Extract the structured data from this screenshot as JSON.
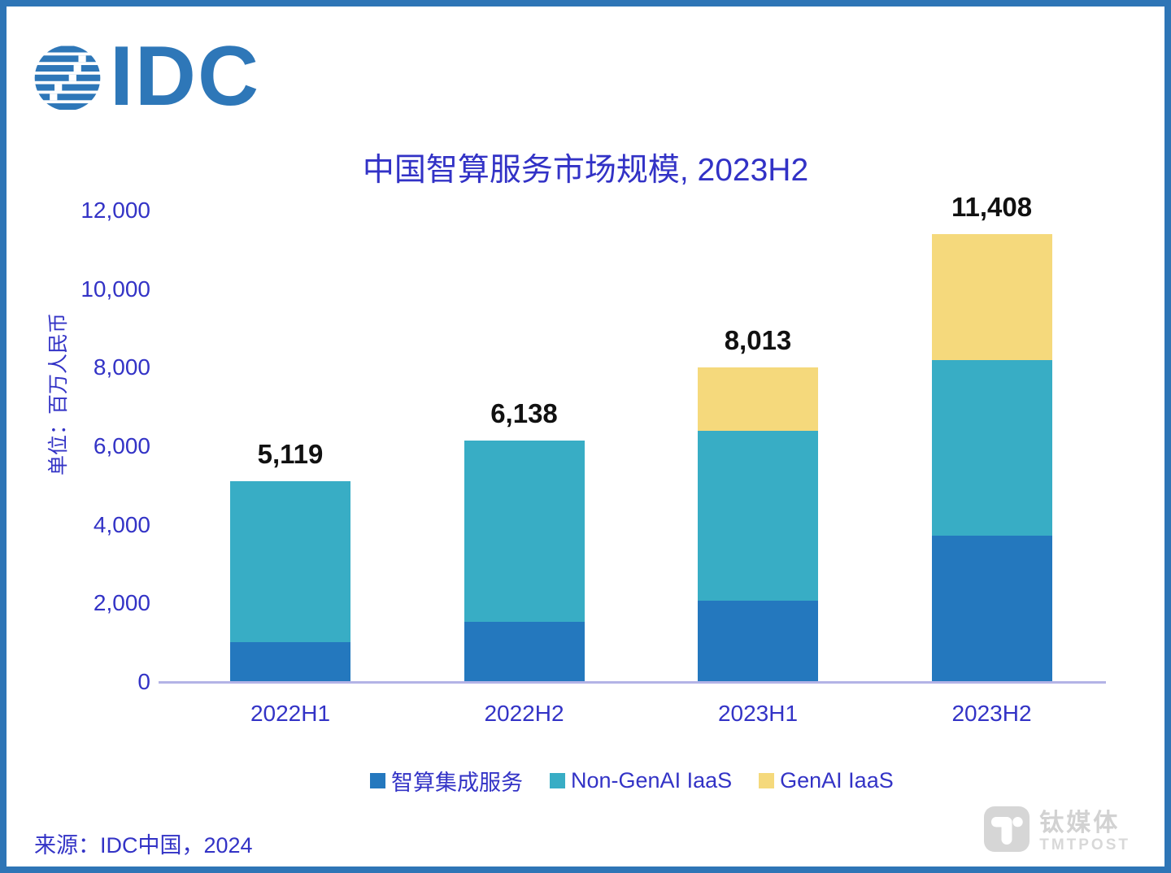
{
  "page": {
    "border_color": "#2E75B6",
    "background": "#FFFFFF"
  },
  "logo": {
    "text": "IDC",
    "color": "#2E77B8"
  },
  "chart_data": {
    "type": "bar",
    "stacked": true,
    "title": "中国智算服务市场规模, 2023H2",
    "ylabel": "单位：百万人民币",
    "ylim": [
      0,
      12000
    ],
    "yticks": [
      0,
      2000,
      4000,
      6000,
      8000,
      10000,
      12000
    ],
    "ytick_labels": [
      "0",
      "2,000",
      "4,000",
      "6,000",
      "8,000",
      "10,000",
      "12,000"
    ],
    "categories": [
      "2022H1",
      "2022H2",
      "2023H1",
      "2023H2"
    ],
    "series": [
      {
        "name": "智算集成服务",
        "color": "#2478BE",
        "values": [
          1017,
          1535,
          2074,
          3730
        ]
      },
      {
        "name": "Non-GenAI IaaS",
        "color": "#38ADC5",
        "values": [
          4102,
          4603,
          4321,
          4458
        ]
      },
      {
        "name": "GenAI IaaS",
        "color": "#F5D97C",
        "values": [
          0,
          0,
          1618,
          3220
        ]
      }
    ],
    "totals": [
      5119,
      6138,
      8013,
      11408
    ],
    "total_labels": [
      "5,119",
      "6,138",
      "8,013",
      "11,408"
    ],
    "segment_values_note": "totals are labeled on chart; per-segment values estimated from bar pixel heights",
    "grid": false,
    "legend_position": "bottom",
    "axis_line_color": "#B3B3E6",
    "text_color": "#3333C6",
    "total_label_color": "#111111"
  },
  "source": {
    "text": "来源：IDC中国，2024"
  },
  "watermark": {
    "cn": "钛媒体",
    "en": "TMTPOST",
    "color": "#D4D4D4"
  }
}
